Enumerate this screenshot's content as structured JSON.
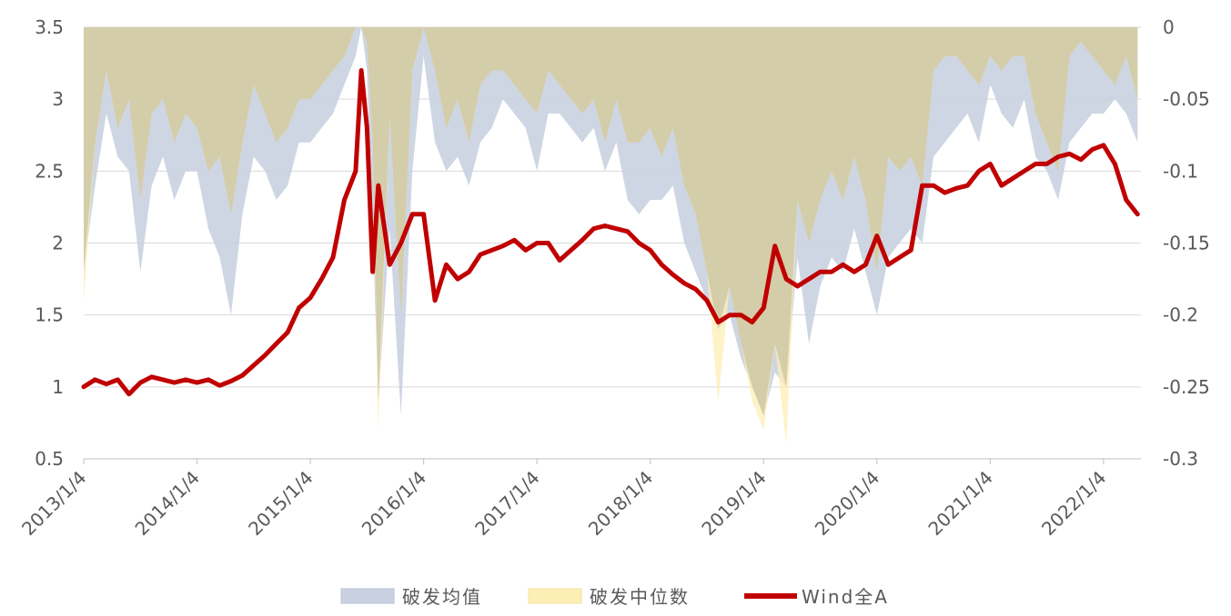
{
  "chart_data": {
    "type": "area",
    "x_axis": {
      "tick_labels": [
        "2013/1/4",
        "2014/1/4",
        "2015/1/4",
        "2016/1/4",
        "2017/1/4",
        "2018/1/4",
        "2019/1/4",
        "2020/1/4",
        "2021/1/4",
        "2022/1/4"
      ],
      "range": [
        "2013-01-04",
        "2022-04-29"
      ]
    },
    "y_left": {
      "ylim": [
        0.5,
        3.5
      ],
      "ticks": [
        "0.5",
        "1",
        "1.5",
        "2",
        "2.5",
        "3",
        "3.5"
      ],
      "values": [
        0.5,
        1,
        1.5,
        2,
        2.5,
        3,
        3.5
      ]
    },
    "y_right": {
      "ylim": [
        -0.3,
        0
      ],
      "ticks": [
        "-0.3",
        "-0.25",
        "-0.2",
        "-0.15",
        "-0.1",
        "-0.05",
        "0"
      ],
      "values": [
        -0.3,
        -0.25,
        -0.2,
        -0.15,
        -0.1,
        -0.05,
        0
      ]
    },
    "grid": true,
    "legend_position": "bottom",
    "x": [
      2013.0,
      2013.1,
      2013.2,
      2013.3,
      2013.4,
      2013.5,
      2013.6,
      2013.7,
      2013.8,
      2013.9,
      2014.0,
      2014.1,
      2014.2,
      2014.3,
      2014.4,
      2014.5,
      2014.6,
      2014.7,
      2014.8,
      2014.9,
      2015.0,
      2015.1,
      2015.2,
      2015.3,
      2015.4,
      2015.45,
      2015.5,
      2015.55,
      2015.6,
      2015.7,
      2015.8,
      2015.9,
      2016.0,
      2016.1,
      2016.2,
      2016.3,
      2016.4,
      2016.5,
      2016.6,
      2016.7,
      2016.8,
      2016.9,
      2017.0,
      2017.1,
      2017.2,
      2017.3,
      2017.4,
      2017.5,
      2017.6,
      2017.7,
      2017.8,
      2017.9,
      2018.0,
      2018.1,
      2018.2,
      2018.3,
      2018.4,
      2018.5,
      2018.6,
      2018.7,
      2018.8,
      2018.9,
      2019.0,
      2019.1,
      2019.2,
      2019.3,
      2019.4,
      2019.5,
      2019.6,
      2019.7,
      2019.8,
      2019.9,
      2020.0,
      2020.1,
      2020.2,
      2020.3,
      2020.4,
      2020.5,
      2020.6,
      2020.7,
      2020.8,
      2020.9,
      2021.0,
      2021.1,
      2021.2,
      2021.3,
      2021.4,
      2021.5,
      2021.6,
      2021.7,
      2021.8,
      2021.9,
      2022.0,
      2022.1,
      2022.2,
      2022.3
    ],
    "series": [
      {
        "name": "破发均值",
        "axis": "right",
        "color": "#c9d1e0",
        "values": [
          -0.17,
          -0.11,
          -0.06,
          -0.09,
          -0.1,
          -0.17,
          -0.11,
          -0.09,
          -0.12,
          -0.1,
          -0.1,
          -0.14,
          -0.16,
          -0.2,
          -0.13,
          -0.09,
          -0.1,
          -0.12,
          -0.11,
          -0.08,
          -0.08,
          -0.07,
          -0.06,
          -0.04,
          -0.02,
          0,
          -0.03,
          -0.14,
          -0.26,
          -0.14,
          -0.27,
          -0.1,
          -0.02,
          -0.08,
          -0.1,
          -0.09,
          -0.11,
          -0.08,
          -0.07,
          -0.05,
          -0.06,
          -0.07,
          -0.1,
          -0.06,
          -0.06,
          -0.07,
          -0.08,
          -0.07,
          -0.1,
          -0.08,
          -0.12,
          -0.13,
          -0.12,
          -0.12,
          -0.11,
          -0.15,
          -0.17,
          -0.19,
          -0.21,
          -0.2,
          -0.23,
          -0.25,
          -0.27,
          -0.24,
          -0.25,
          -0.16,
          -0.22,
          -0.18,
          -0.16,
          -0.17,
          -0.14,
          -0.17,
          -0.2,
          -0.16,
          -0.15,
          -0.14,
          -0.15,
          -0.09,
          -0.08,
          -0.07,
          -0.06,
          -0.08,
          -0.04,
          -0.06,
          -0.07,
          -0.05,
          -0.09,
          -0.1,
          -0.12,
          -0.08,
          -0.07,
          -0.06,
          -0.06,
          -0.05,
          -0.06,
          -0.08
        ]
      },
      {
        "name": "破发中位数",
        "axis": "right",
        "color": "#fdeeb4",
        "values": [
          -0.19,
          -0.08,
          -0.03,
          -0.07,
          -0.05,
          -0.12,
          -0.06,
          -0.05,
          -0.08,
          -0.06,
          -0.07,
          -0.1,
          -0.09,
          -0.13,
          -0.08,
          -0.04,
          -0.06,
          -0.08,
          -0.07,
          -0.05,
          -0.05,
          -0.04,
          -0.03,
          -0.02,
          0,
          0,
          -0.01,
          -0.08,
          -0.28,
          -0.06,
          -0.2,
          -0.03,
          0,
          -0.03,
          -0.07,
          -0.05,
          -0.08,
          -0.04,
          -0.03,
          -0.03,
          -0.04,
          -0.05,
          -0.06,
          -0.03,
          -0.04,
          -0.05,
          -0.06,
          -0.05,
          -0.08,
          -0.05,
          -0.08,
          -0.08,
          -0.07,
          -0.09,
          -0.07,
          -0.11,
          -0.13,
          -0.17,
          -0.26,
          -0.18,
          -0.22,
          -0.26,
          -0.28,
          -0.22,
          -0.29,
          -0.12,
          -0.15,
          -0.12,
          -0.1,
          -0.12,
          -0.09,
          -0.12,
          -0.17,
          -0.09,
          -0.1,
          -0.09,
          -0.11,
          -0.03,
          -0.02,
          -0.02,
          -0.03,
          -0.04,
          -0.02,
          -0.03,
          -0.02,
          -0.02,
          -0.06,
          -0.08,
          -0.1,
          -0.02,
          -0.01,
          -0.02,
          -0.03,
          -0.04,
          -0.02,
          -0.05
        ]
      },
      {
        "name": "Wind全A",
        "axis": "left",
        "color": "#c00000",
        "values": [
          1.0,
          1.05,
          1.02,
          1.05,
          0.95,
          1.03,
          1.07,
          1.05,
          1.03,
          1.05,
          1.03,
          1.05,
          1.01,
          1.04,
          1.08,
          1.15,
          1.22,
          1.3,
          1.38,
          1.55,
          1.62,
          1.75,
          1.9,
          2.3,
          2.5,
          3.2,
          2.8,
          1.8,
          2.4,
          1.85,
          2.0,
          2.2,
          2.2,
          1.6,
          1.85,
          1.75,
          1.8,
          1.92,
          1.95,
          1.98,
          2.02,
          1.95,
          2.0,
          2.0,
          1.88,
          1.95,
          2.02,
          2.1,
          2.12,
          2.1,
          2.08,
          2.0,
          1.95,
          1.85,
          1.78,
          1.72,
          1.68,
          1.6,
          1.45,
          1.5,
          1.5,
          1.45,
          1.55,
          1.98,
          1.75,
          1.7,
          1.75,
          1.8,
          1.8,
          1.85,
          1.8,
          1.85,
          2.05,
          1.85,
          1.9,
          1.95,
          2.4,
          2.4,
          2.35,
          2.38,
          2.4,
          2.5,
          2.55,
          2.4,
          2.45,
          2.5,
          2.55,
          2.55,
          2.6,
          2.62,
          2.58,
          2.65,
          2.68,
          2.55,
          2.3,
          2.2
        ]
      }
    ]
  }
}
